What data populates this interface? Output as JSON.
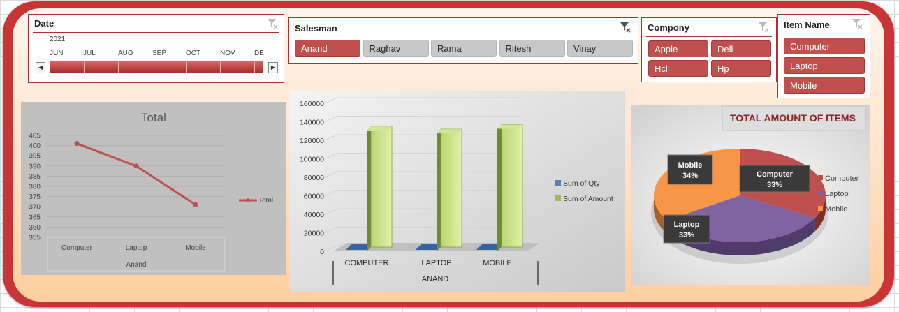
{
  "date_slicer": {
    "title": "Date",
    "year": "2021",
    "months": [
      "JUN",
      "JUL",
      "AUG",
      "SEP",
      "OCT",
      "NOV",
      "DE"
    ],
    "left_arrow": "◀",
    "right_arrow": "▶"
  },
  "salesman_slicer": {
    "title": "Salesman",
    "items": [
      {
        "label": "Anand",
        "selected": true
      },
      {
        "label": "Raghav",
        "selected": false
      },
      {
        "label": "Rama",
        "selected": false
      },
      {
        "label": "Ritesh",
        "selected": false
      },
      {
        "label": "Vinay",
        "selected": false
      }
    ]
  },
  "company_slicer": {
    "title": "Compony",
    "items": [
      {
        "label": "Apple",
        "selected": true
      },
      {
        "label": "Dell",
        "selected": true
      },
      {
        "label": "Hcl",
        "selected": true
      },
      {
        "label": "Hp",
        "selected": true
      }
    ]
  },
  "item_slicer": {
    "title": "Item Name",
    "items": [
      {
        "label": "Computer",
        "selected": true
      },
      {
        "label": "Laptop",
        "selected": true
      },
      {
        "label": "Mobile",
        "selected": true
      }
    ]
  },
  "colors": {
    "accent": "#c0504d",
    "frame": "#c93434",
    "qty": "#4f81bd",
    "amount": "#9bbb59",
    "computer": "#c0504d",
    "laptop": "#8064a2",
    "mobile": "#f79646"
  },
  "chart_data": [
    {
      "type": "line",
      "title": "Total",
      "categories": [
        "Computer",
        "Laptop",
        "Mobile"
      ],
      "group_label": "Anand",
      "series": [
        {
          "name": "Total",
          "values": [
            401,
            390,
            371
          ]
        }
      ],
      "ylim": [
        355,
        405
      ],
      "yticks": [
        355,
        360,
        365,
        370,
        375,
        380,
        385,
        390,
        395,
        400,
        405
      ],
      "legend": "right",
      "grid": true
    },
    {
      "type": "bar",
      "title": "",
      "categories": [
        "COMPUTER",
        "LAPTOP",
        "MOBILE"
      ],
      "group_label": "ANAND",
      "series": [
        {
          "name": "Sum of Qty",
          "values": [
            3,
            3,
            3
          ]
        },
        {
          "name": "Sum of Amount",
          "values": [
            135000,
            132000,
            137000
          ]
        }
      ],
      "ylim": [
        0,
        160000
      ],
      "yticks": [
        0,
        20000,
        40000,
        60000,
        80000,
        100000,
        120000,
        140000,
        160000
      ],
      "legend": "right",
      "grid": true
    },
    {
      "type": "pie",
      "title": "TOTAL AMOUNT OF ITEMS",
      "slices": [
        {
          "label": "Computer",
          "value": 33,
          "display": "33%"
        },
        {
          "label": "Laptop",
          "value": 33,
          "display": "33%"
        },
        {
          "label": "Mobile",
          "value": 34,
          "display": "34%"
        }
      ],
      "legend": "right"
    }
  ]
}
